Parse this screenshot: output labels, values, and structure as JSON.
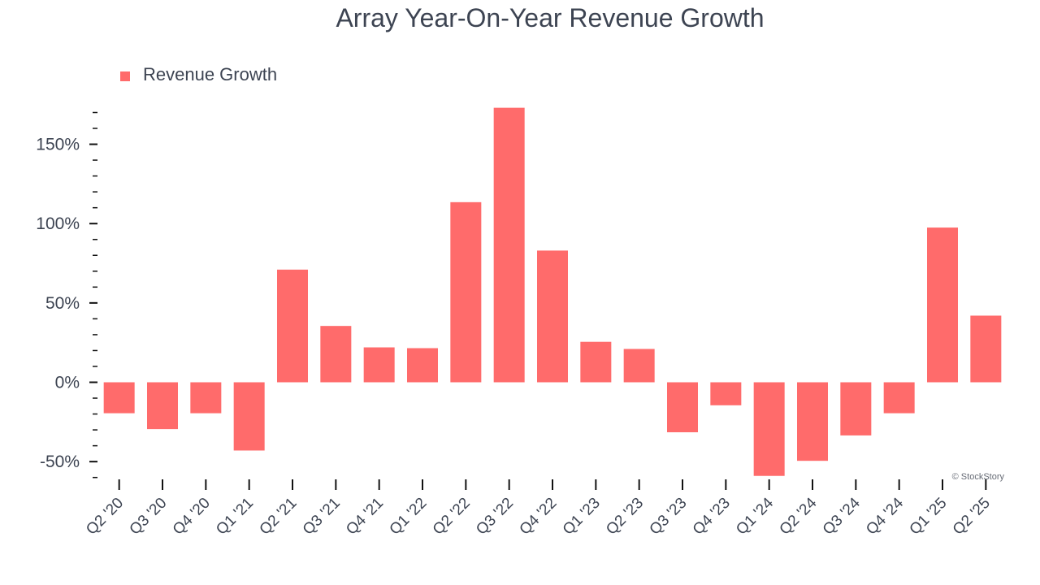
{
  "chart_data": {
    "type": "bar",
    "title": "Array Year-On-Year Revenue Growth",
    "xlabel": "",
    "ylabel": "",
    "categories": [
      "Q2 '20",
      "Q3 '20",
      "Q4 '20",
      "Q1 '21",
      "Q2 '21",
      "Q3 '21",
      "Q4 '21",
      "Q1 '22",
      "Q2 '22",
      "Q3 '22",
      "Q4 '22",
      "Q1 '23",
      "Q2 '23",
      "Q3 '23",
      "Q4 '23",
      "Q1 '24",
      "Q2 '24",
      "Q3 '24",
      "Q4 '24",
      "Q1 '25",
      "Q2 '25"
    ],
    "series": [
      {
        "name": "Revenue Growth",
        "color": "#ff6b6b",
        "values": [
          -19.5,
          -29.5,
          -19.5,
          -43,
          71,
          35.5,
          22,
          21.5,
          113.5,
          173,
          83,
          25.5,
          21,
          -31.5,
          -14.5,
          -59,
          -49.5,
          -33.5,
          -19.5,
          97.5,
          42
        ]
      }
    ],
    "ylim": [
      -60,
      172
    ],
    "yticks": [
      -50,
      0,
      50,
      100,
      150
    ],
    "ytick_labels": [
      "-50%",
      "0%",
      "50%",
      "100%",
      "150%"
    ],
    "legend_position": "top-left",
    "watermark": "© StockStory"
  }
}
